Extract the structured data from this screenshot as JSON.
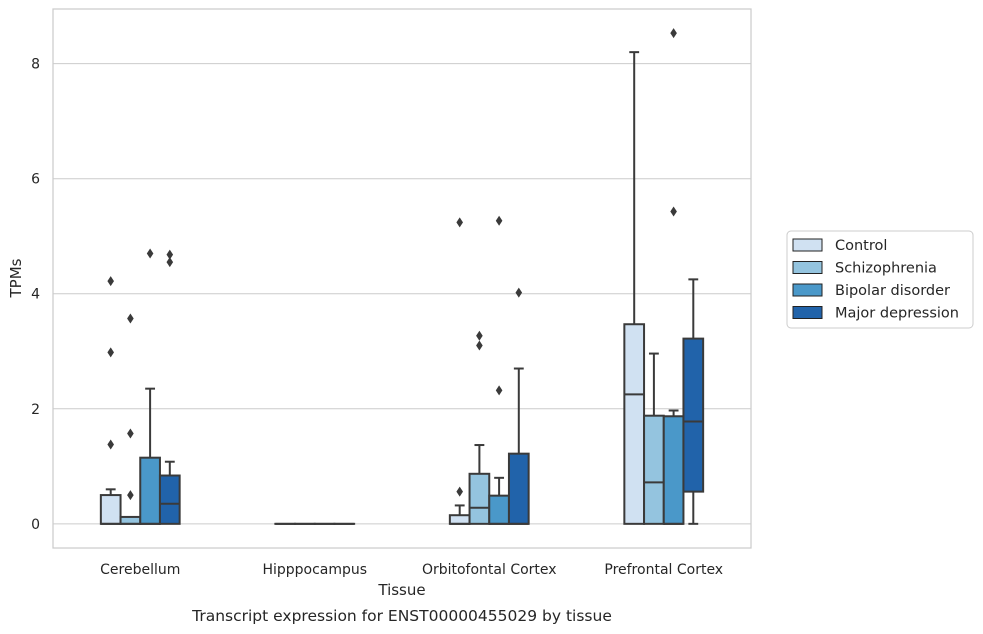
{
  "chart_data": {
    "type": "boxplot",
    "caption": "Transcript expression for ENST00000455029 by tissue",
    "xlabel": "Tissue",
    "ylabel": "TPMs",
    "ylim": [
      -0.42,
      8.95
    ],
    "yticks": [
      "0",
      "2",
      "4",
      "6",
      "8"
    ],
    "grid": "horizontal",
    "legend_position": "right",
    "colors": {
      "Control": "#d0e1f2",
      "Schizophrenia": "#94c4df",
      "Bipolar disorder": "#4a98c9",
      "Major depression": "#2163aa",
      "edge": "#3a3a3a",
      "grid": "#cccccc"
    },
    "categories": [
      "Cerebellum",
      "Hipppocampus",
      "Orbitofontal Cortex",
      "Prefrontal Cortex"
    ],
    "series": [
      {
        "name": "Control",
        "color": "#d0e1f2",
        "boxes": [
          {
            "q1": 0.0,
            "median": 0.0,
            "q3": 0.5,
            "wlow": 0.0,
            "whigh": 0.6,
            "outliers": [
              1.38,
              2.98,
              4.22
            ]
          },
          {
            "q1": 0.0,
            "median": 0.0,
            "q3": 0.0,
            "wlow": 0.0,
            "whigh": 0.0,
            "outliers": []
          },
          {
            "q1": 0.0,
            "median": 0.0,
            "q3": 0.15,
            "wlow": 0.0,
            "whigh": 0.32,
            "outliers": [
              0.56,
              5.24
            ]
          },
          {
            "q1": 0.0,
            "median": 2.25,
            "q3": 3.47,
            "wlow": 0.0,
            "whigh": 8.2,
            "outliers": []
          }
        ]
      },
      {
        "name": "Schizophrenia",
        "color": "#94c4df",
        "boxes": [
          {
            "q1": 0.0,
            "median": 0.0,
            "q3": 0.12,
            "wlow": 0.0,
            "whigh": 0.12,
            "outliers": [
              0.5,
              1.57,
              3.57
            ]
          },
          {
            "q1": 0.0,
            "median": 0.0,
            "q3": 0.0,
            "wlow": 0.0,
            "whigh": 0.0,
            "outliers": []
          },
          {
            "q1": 0.0,
            "median": 0.28,
            "q3": 0.87,
            "wlow": 0.0,
            "whigh": 1.37,
            "outliers": [
              3.1,
              3.27
            ]
          },
          {
            "q1": 0.0,
            "median": 0.72,
            "q3": 1.88,
            "wlow": 0.0,
            "whigh": 2.96,
            "outliers": []
          }
        ]
      },
      {
        "name": "Bipolar disorder",
        "color": "#4a98c9",
        "boxes": [
          {
            "q1": 0.0,
            "median": 0.0,
            "q3": 1.15,
            "wlow": 0.0,
            "whigh": 2.35,
            "outliers": [
              4.7
            ]
          },
          {
            "q1": 0.0,
            "median": 0.0,
            "q3": 0.0,
            "wlow": 0.0,
            "whigh": 0.0,
            "outliers": []
          },
          {
            "q1": 0.0,
            "median": 0.0,
            "q3": 0.49,
            "wlow": 0.0,
            "whigh": 0.8,
            "outliers": [
              2.32,
              5.27
            ]
          },
          {
            "q1": 0.0,
            "median": 0.0,
            "q3": 1.87,
            "wlow": 0.0,
            "whigh": 1.97,
            "outliers": [
              5.43,
              8.53
            ]
          }
        ]
      },
      {
        "name": "Major depression",
        "color": "#2163aa",
        "boxes": [
          {
            "q1": 0.0,
            "median": 0.35,
            "q3": 0.84,
            "wlow": 0.0,
            "whigh": 1.08,
            "outliers": [
              4.55,
              4.68
            ]
          },
          {
            "q1": 0.0,
            "median": 0.0,
            "q3": 0.0,
            "wlow": 0.0,
            "whigh": 0.0,
            "outliers": []
          },
          {
            "q1": 0.0,
            "median": 0.0,
            "q3": 1.22,
            "wlow": 0.0,
            "whigh": 2.7,
            "outliers": [
              4.02
            ]
          },
          {
            "q1": 0.56,
            "median": 1.78,
            "q3": 3.22,
            "wlow": 0.0,
            "whigh": 4.25,
            "outliers": []
          }
        ]
      }
    ]
  }
}
